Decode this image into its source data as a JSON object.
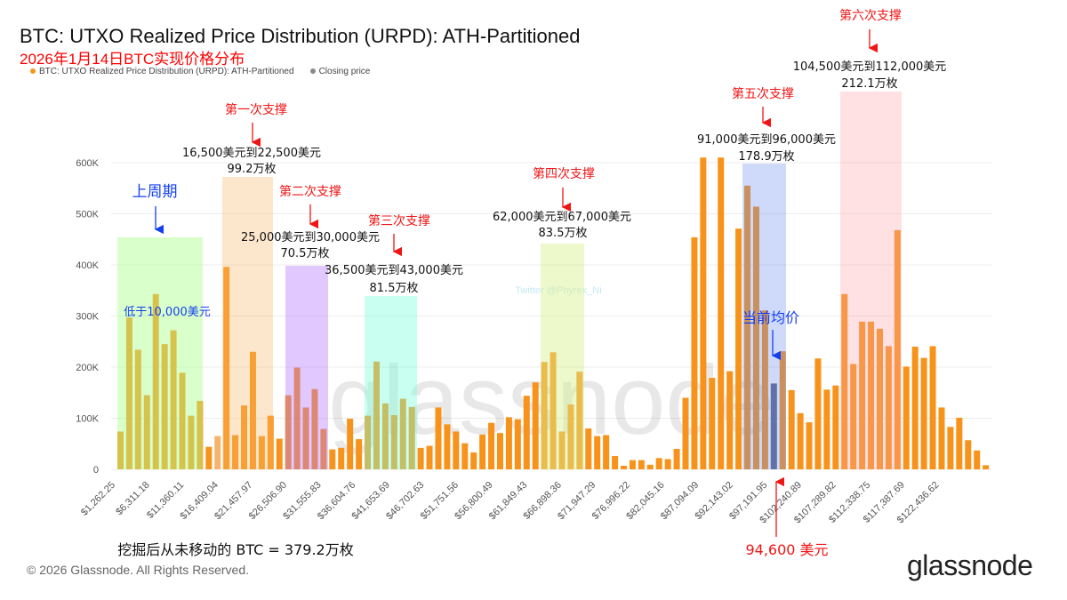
{
  "header": {
    "title": "BTC: UTXO Realized Price Distribution (URPD): ATH-Partitioned",
    "subtitle": "2026年1月14日BTC实现价格分布",
    "legend": [
      {
        "label": "BTC: UTXO Realized Price Distribution (URPD): ATH-Partitioned",
        "color": "#f7931a"
      },
      {
        "label": "Closing price",
        "color": "#888888"
      }
    ]
  },
  "footer": {
    "copyright": "© 2026 Glassnode. All Rights Reserved.",
    "logo": "glassnode"
  },
  "watermark": {
    "text": "glassnode",
    "credit": "Twitter @Phyrex_Ni"
  },
  "annotations": {
    "prev_cycle": {
      "label": "上周期",
      "note": "低于10,000美元"
    },
    "s1": {
      "label": "第一次支撑",
      "range": "16,500美元到22,500美元",
      "amount": "99.2万枚"
    },
    "s2": {
      "label": "第二次支撑",
      "range": "25,000美元到30,000美元",
      "amount": "70.5万枚"
    },
    "s3": {
      "label": "第三次支撑",
      "range": "36,500美元到43,000美元",
      "amount": "81.5万枚"
    },
    "s4": {
      "label": "第四次支撑",
      "range": "62,000美元到67,000美元",
      "amount": "83.5万枚"
    },
    "s5": {
      "label": "第五次支撑",
      "range": "91,000美元到96,000美元",
      "amount": "178.9万枚"
    },
    "s6": {
      "label": "第六次支撑",
      "range": "104,500美元到112,000美元",
      "amount": "212.1万枚"
    },
    "current": {
      "label": "当前均价",
      "price": "94,600 美元"
    },
    "unmoved": "挖掘后从未移动的 BTC = 379.2万枚"
  },
  "chart_data": {
    "type": "bar",
    "title": "BTC: UTXO Realized Price Distribution (URPD): ATH-Partitioned",
    "xlabel": "",
    "ylabel": "",
    "ylim": [
      0,
      650000
    ],
    "yticks": [
      {
        "v": 0,
        "label": "0"
      },
      {
        "v": 100000,
        "label": "100K"
      },
      {
        "v": 200000,
        "label": "200K"
      },
      {
        "v": 300000,
        "label": "300K"
      },
      {
        "v": 400000,
        "label": "400K"
      },
      {
        "v": 500000,
        "label": "500K"
      },
      {
        "v": 600000,
        "label": "600K"
      }
    ],
    "grid": true,
    "xtick_labels": [
      "$1,262.25",
      "$6,311.18",
      "$11,360.11",
      "$16,409.04",
      "$21,457.97",
      "$26,506.90",
      "$31,555.83",
      "$36,604.76",
      "$41,653.69",
      "$46,702.63",
      "$51,751.56",
      "$56,800.49",
      "$61,849.43",
      "$66,898.36",
      "$71,947.29",
      "$76,996.22",
      "$82,045.16",
      "$87,094.09",
      "$92,143.02",
      "$97,191.95",
      "$102,240.89",
      "$107,289.82",
      "$112,338.75",
      "$117,387.69",
      "$122,436.62"
    ],
    "closing_price_bin": 74,
    "values": [
      74000,
      297000,
      234000,
      145000,
      343000,
      245000,
      272000,
      189000,
      105000,
      134000,
      44000,
      65000,
      396000,
      67000,
      125000,
      230000,
      65000,
      105000,
      60000,
      145000,
      199000,
      121000,
      157000,
      79000,
      39000,
      42000,
      99000,
      59000,
      105000,
      211000,
      129000,
      106000,
      138000,
      122000,
      42000,
      46000,
      121000,
      88000,
      74000,
      51000,
      33000,
      68000,
      91000,
      71000,
      102000,
      98000,
      144000,
      170000,
      210000,
      229000,
      74000,
      127000,
      191000,
      80000,
      65000,
      67000,
      26000,
      7000,
      18000,
      18000,
      9000,
      22000,
      20000,
      40000,
      140000,
      454000,
      610000,
      179000,
      610000,
      192000,
      471000,
      555000,
      514000,
      311000,
      168000,
      231000,
      155000,
      110000,
      92000,
      217000,
      156000,
      164000,
      343000,
      206000,
      289000,
      289000,
      275000,
      241000,
      468000,
      201000,
      240000,
      218000,
      241000,
      121000,
      83000,
      101000,
      57000,
      37000,
      8000
    ],
    "colors": {
      "bar": "#f7931a",
      "closing": "#5a6685"
    }
  }
}
